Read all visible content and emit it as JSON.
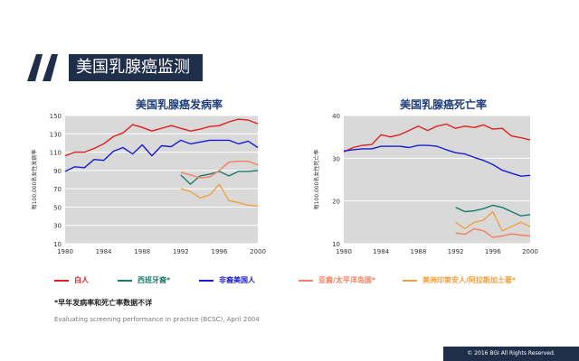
{
  "header": {
    "title": "美国乳腺癌监测"
  },
  "legend": [
    {
      "label": "白人",
      "color": "#e02020"
    },
    {
      "label": "西班牙裔*",
      "color": "#1a7a6a"
    },
    {
      "label": "非裔美国人",
      "color": "#1a1ad0"
    },
    {
      "label": "亚裔/太平洋岛国*",
      "color": "#f08060"
    },
    {
      "label": "美洲印第安人/阿拉斯加土著*",
      "color": "#f0a040"
    }
  ],
  "footnote": "*早年发病率和死亡率数据不详",
  "source": "Evaluating screening performance in practice (BCSC), April 2004",
  "copyright": "© 2016 BGI All Rights Reserved.",
  "chart_data": [
    {
      "type": "line",
      "title": "美国乳腺癌发病率",
      "ylabel": "每100,000名女性发病率",
      "xlabel": "",
      "xlim": [
        1980,
        2000
      ],
      "ylim": [
        10,
        150
      ],
      "x_ticks": [
        1980,
        1984,
        1988,
        1992,
        1996,
        2000
      ],
      "y_ticks": [
        10,
        30,
        50,
        70,
        90,
        110,
        130,
        150
      ],
      "grid": "horizontal",
      "series": [
        {
          "name": "白人",
          "color": "#e02020",
          "x": [
            1980,
            1981,
            1982,
            1983,
            1984,
            1985,
            1986,
            1987,
            1988,
            1989,
            1990,
            1991,
            1992,
            1993,
            1994,
            1995,
            1996,
            1997,
            1998,
            1999,
            2000
          ],
          "y": [
            106,
            110,
            110,
            114,
            119,
            127,
            131,
            140,
            137,
            133,
            136,
            139,
            136,
            133,
            135,
            138,
            139,
            143,
            146,
            145,
            141
          ]
        },
        {
          "name": "非裔美国人",
          "color": "#1a1ad0",
          "x": [
            1980,
            1981,
            1982,
            1983,
            1984,
            1985,
            1986,
            1987,
            1988,
            1989,
            1990,
            1991,
            1992,
            1993,
            1994,
            1995,
            1996,
            1997,
            1998,
            1999,
            2000
          ],
          "y": [
            89,
            94,
            93,
            102,
            101,
            111,
            115,
            108,
            118,
            106,
            117,
            116,
            123,
            119,
            121,
            123,
            123,
            123,
            119,
            122,
            115
          ]
        },
        {
          "name": "西班牙裔*",
          "color": "#1a7a6a",
          "x": [
            1992,
            1993,
            1994,
            1995,
            1996,
            1997,
            1998,
            1999,
            2000
          ],
          "y": [
            85,
            75,
            84,
            86,
            89,
            84,
            89,
            89,
            90
          ]
        },
        {
          "name": "亚裔/太平洋岛国*",
          "color": "#f08060",
          "x": [
            1992,
            1993,
            1994,
            1995,
            1996,
            1997,
            1998,
            1999,
            2000
          ],
          "y": [
            88,
            85,
            82,
            83,
            90,
            99,
            100,
            100,
            96
          ]
        },
        {
          "name": "美洲印第安人/阿拉斯加土著*",
          "color": "#f0a040",
          "x": [
            1992,
            1993,
            1994,
            1995,
            1996,
            1997,
            1998,
            1999,
            2000
          ],
          "y": [
            70,
            67,
            60,
            63,
            75,
            57,
            55,
            52,
            51
          ]
        }
      ]
    },
    {
      "type": "line",
      "title": "美国乳腺癌死亡率",
      "ylabel": "每100,000名女性死亡率",
      "xlabel": "",
      "xlim": [
        1980,
        2000
      ],
      "ylim": [
        10,
        40
      ],
      "x_ticks": [
        1980,
        1984,
        1988,
        1992,
        1996,
        2000
      ],
      "y_ticks": [
        10,
        20,
        30,
        40
      ],
      "grid": "horizontal",
      "series": [
        {
          "name": "白人",
          "color": "#e02020",
          "x": [
            1980,
            1981,
            1982,
            1983,
            1984,
            1985,
            1986,
            1987,
            1988,
            1989,
            1990,
            1991,
            1992,
            1993,
            1994,
            1995,
            1996,
            1997,
            1998,
            1999,
            2000
          ],
          "y": [
            31.5,
            32.5,
            33,
            33.2,
            35.5,
            35,
            35.5,
            36.5,
            37.5,
            36.5,
            37.5,
            38,
            37,
            37.5,
            37.2,
            37.8,
            36.8,
            37,
            35.2,
            34.8,
            34.3
          ]
        },
        {
          "name": "非裔美国人",
          "color": "#1a1ad0",
          "x": [
            1980,
            1981,
            1982,
            1983,
            1984,
            1985,
            1986,
            1987,
            1988,
            1989,
            1990,
            1991,
            1992,
            1993,
            1994,
            1995,
            1996,
            1997,
            1998,
            1999,
            2000
          ],
          "y": [
            31.7,
            32,
            32.2,
            32.2,
            32.8,
            32.8,
            32.8,
            32.5,
            33,
            33,
            32.8,
            32,
            31.3,
            31,
            30.2,
            29.5,
            28.5,
            27.2,
            26.5,
            25.8,
            26
          ]
        },
        {
          "name": "西班牙裔*",
          "color": "#1a7a6a",
          "x": [
            1992,
            1993,
            1994,
            1995,
            1996,
            1997,
            1998,
            1999,
            2000
          ],
          "y": [
            18.5,
            17.5,
            17.7,
            18.2,
            19,
            18.5,
            17.5,
            16.5,
            16.8
          ]
        },
        {
          "name": "亚裔/太平洋岛国*",
          "color": "#f08060",
          "x": [
            1992,
            1993,
            1994,
            1995,
            1996,
            1997,
            1998,
            1999,
            2000
          ],
          "y": [
            12.5,
            12.2,
            13.5,
            13,
            11.5,
            11.8,
            12.3,
            12,
            11.8
          ]
        },
        {
          "name": "美洲印第安人/阿拉斯加土著*",
          "color": "#f0a040",
          "x": [
            1992,
            1993,
            1994,
            1995,
            1996,
            1997,
            1998,
            1999,
            2000
          ],
          "y": [
            15,
            13.5,
            15,
            15.5,
            17.5,
            13,
            14,
            15,
            14
          ]
        }
      ]
    }
  ]
}
